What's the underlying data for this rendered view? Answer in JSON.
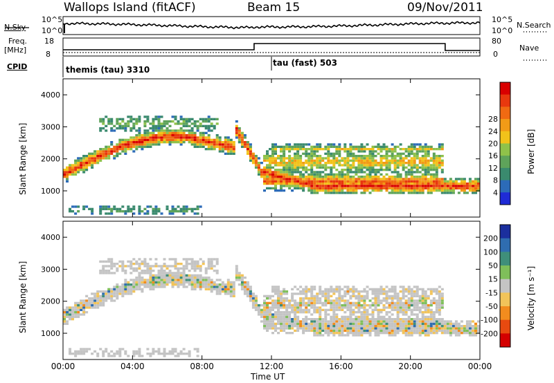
{
  "header": {
    "station": "Wallops Island (fitACF)",
    "beam": "Beam 15",
    "date": "09/Nov/2011"
  },
  "top_panels": {
    "nsky_label": "N.Sky",
    "nsearch_label": "N.Search",
    "nsky_ticks": [
      "10^5",
      "10^0"
    ],
    "nsearch_ticks": [
      "10^5",
      "10^0"
    ],
    "freq_label": "Freq.",
    "freq_unit": "[MHz]",
    "freq_ticks": [
      "18",
      "8"
    ],
    "nave_label": "Nave",
    "nave_ticks": [
      "80",
      "0"
    ],
    "cpid_label": "CPID",
    "cpid_modes": [
      {
        "name": "themis (tau) 3310",
        "start_hour": 0
      },
      {
        "name": "tau (fast) 503",
        "start_hour": 12
      }
    ]
  },
  "chart_data": [
    {
      "type": "heatmap",
      "title": "Power",
      "ylabel": "Slant Range [km]",
      "xlabel": "",
      "xlim": [
        0,
        24
      ],
      "ylim": [
        180,
        4500
      ],
      "y_ticks": [
        1000,
        2000,
        3000,
        4000
      ],
      "colorbar_label": "Power [dB]",
      "colorbar_ticks": [
        4,
        8,
        12,
        16,
        20,
        24,
        28
      ],
      "colorbar_colors": [
        "#1f2bd6",
        "#2c6bb8",
        "#3a8a6e",
        "#5ea35a",
        "#8fc24a",
        "#f2c21a",
        "#f29b17",
        "#f06a12",
        "#e8380e",
        "#d90000"
      ]
    },
    {
      "type": "heatmap",
      "title": "Velocity",
      "ylabel": "Slant Range [km]",
      "xlabel": "Time UT",
      "xlim": [
        0,
        24
      ],
      "ylim": [
        180,
        4500
      ],
      "y_ticks": [
        1000,
        2000,
        3000,
        4000
      ],
      "x_ticks": [
        "00:00",
        "04:00",
        "08:00",
        "12:00",
        "16:00",
        "20:00",
        "00:00"
      ],
      "colorbar_label": "Velocity [m s⁻¹]",
      "colorbar_ticks": [
        "200",
        "100",
        "50",
        "15",
        "-15",
        "-50",
        "-100",
        "-200"
      ],
      "colorbar_colors": [
        "#1b2f9e",
        "#2f6db0",
        "#3f8f7a",
        "#7fbf5a",
        "#c4c4c4",
        "#f2c45a",
        "#f28c1e",
        "#e84a10",
        "#d40000"
      ]
    }
  ]
}
